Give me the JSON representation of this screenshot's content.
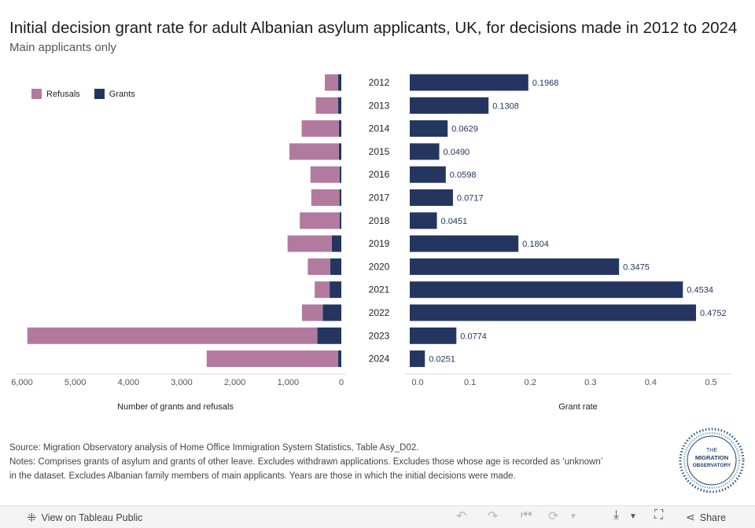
{
  "header": {
    "title": "Initial decision grant rate for adult Albanian asylum applicants, UK, for decisions made in 2012 to 2024",
    "subtitle": "Main applicants only"
  },
  "legend": {
    "refusals": "Refusals",
    "grants": "Grants"
  },
  "colors": {
    "refusals": "#b27a9f",
    "grants": "#243660",
    "axis": "#555555"
  },
  "chart_data": [
    {
      "type": "bar",
      "orientation": "horizontal",
      "stacked": true,
      "xlabel": "Number of grants and refusals",
      "xlim": [
        0,
        6000
      ],
      "x_reversed": true,
      "xticks": [
        "6,000",
        "5,000",
        "4,000",
        "3,000",
        "2,000",
        "1,000",
        "0"
      ],
      "xtick_values": [
        6000,
        5000,
        4000,
        3000,
        2000,
        1000,
        0
      ],
      "categories": [
        "2012",
        "2013",
        "2014",
        "2015",
        "2016",
        "2017",
        "2018",
        "2019",
        "2020",
        "2021",
        "2022",
        "2023",
        "2024"
      ],
      "series": [
        {
          "name": "Grants",
          "values": [
            60,
            60,
            45,
            45,
            30,
            35,
            30,
            180,
            210,
            220,
            350,
            450,
            60
          ]
        },
        {
          "name": "Refusals",
          "values": [
            250,
            420,
            700,
            930,
            550,
            530,
            750,
            830,
            420,
            280,
            390,
            5450,
            2470
          ]
        }
      ]
    },
    {
      "type": "bar",
      "orientation": "horizontal",
      "xlabel": "Grant rate",
      "xlim": [
        0,
        0.5
      ],
      "xticks": [
        "0.0",
        "0.1",
        "0.2",
        "0.3",
        "0.4",
        "0.5"
      ],
      "xtick_values": [
        0,
        0.1,
        0.2,
        0.3,
        0.4,
        0.5
      ],
      "categories": [
        "2012",
        "2013",
        "2014",
        "2015",
        "2016",
        "2017",
        "2018",
        "2019",
        "2020",
        "2021",
        "2022",
        "2023",
        "2024"
      ],
      "values": [
        0.1968,
        0.1308,
        0.0629,
        0.049,
        0.0598,
        0.0717,
        0.0451,
        0.1804,
        0.3475,
        0.4534,
        0.4752,
        0.0774,
        0.0251
      ],
      "value_labels": [
        "0.1968",
        "0.1308",
        "0.0629",
        "0.0490",
        "0.0598",
        "0.0717",
        "0.0451",
        "0.1804",
        "0.3475",
        "0.4534",
        "0.4752",
        "0.0774",
        "0.0251"
      ]
    }
  ],
  "notes": {
    "source": "Source: Migration Observatory analysis of Home Office Immigration System Statistics, Table Asy_D02.",
    "line1": "Notes: Comprises grants of asylum and grants of other leave. Excludes withdrawn applications. Excludes those whose age is recorded as ‘unknown’",
    "line2": "in the dataset. Excludes Albanian family members of main applicants. Years are those in which the initial decisions were made."
  },
  "logo": {
    "line1": "THE",
    "line2": "MIGRATION",
    "line3": "OBSERVATORY"
  },
  "footer": {
    "view_label": "View on Tableau Public",
    "share_label": "Share"
  },
  "icons": {
    "tableau": "tableau-icon",
    "undo": "undo-icon",
    "redo": "redo-icon",
    "revert": "revert-icon",
    "download": "download-icon",
    "fullscreen": "fullscreen-icon",
    "share": "share-icon"
  }
}
